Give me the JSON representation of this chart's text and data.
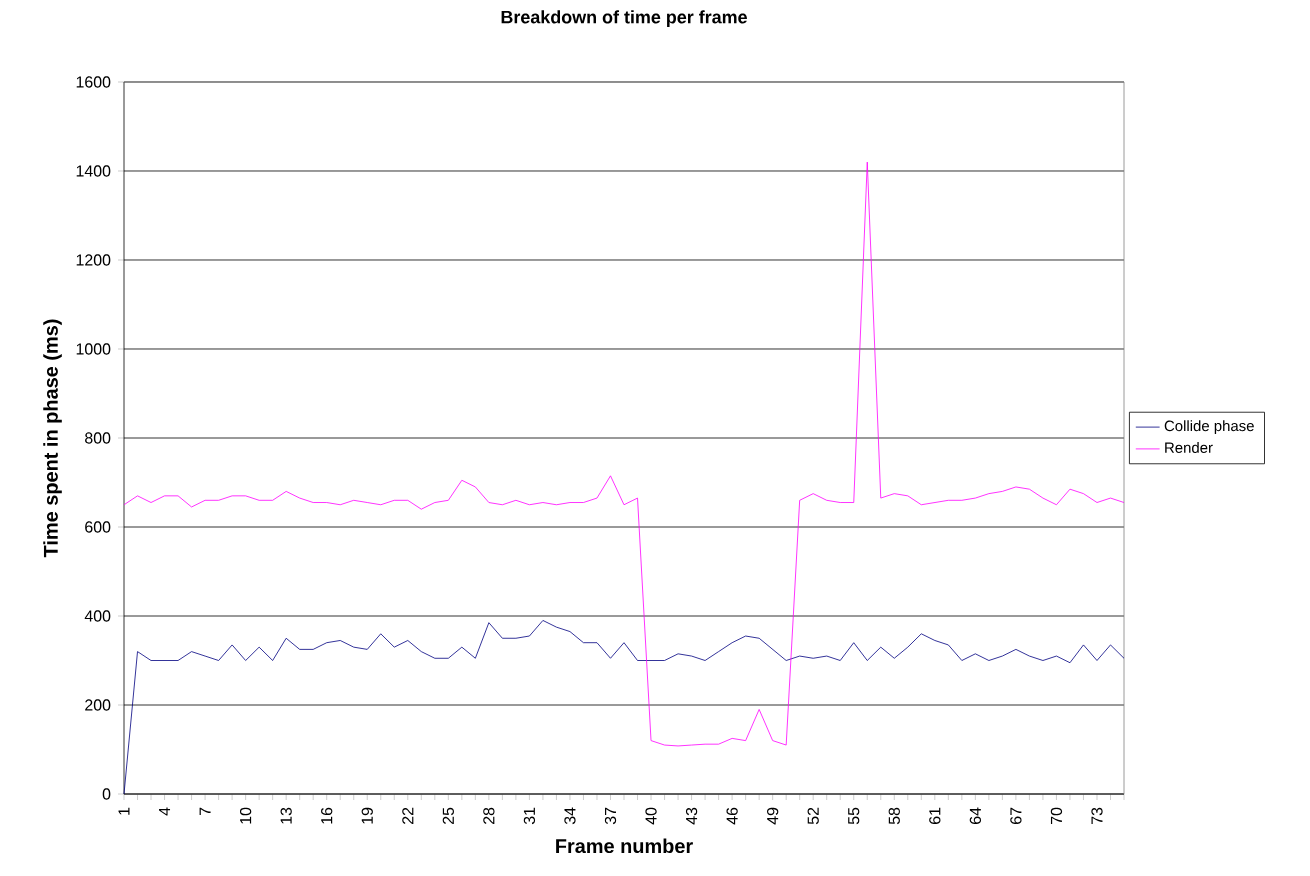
{
  "chart_data": {
    "type": "line",
    "title": "Breakdown of time per frame",
    "xlabel": "Frame number",
    "ylabel": "Time spent in phase (ms)",
    "categories": [
      "1",
      null,
      null,
      "4",
      null,
      null,
      "7",
      null,
      null,
      "10",
      null,
      null,
      "13",
      null,
      null,
      "16",
      null,
      null,
      "19",
      null,
      null,
      "22",
      null,
      null,
      "25",
      null,
      null,
      "28",
      null,
      null,
      "31",
      null,
      null,
      "34",
      null,
      null,
      "37",
      null,
      null,
      "40",
      null,
      null,
      "43",
      null,
      null,
      "46",
      null,
      null,
      "49",
      null,
      null,
      "52",
      null,
      null,
      "55",
      null,
      null,
      "58",
      null,
      null,
      "61",
      null,
      null,
      "64",
      null,
      null,
      "67",
      null,
      null,
      "70",
      null,
      null,
      "73",
      null,
      null
    ],
    "series": [
      {
        "name": "Collide phase",
        "color": "#000080",
        "values": [
          0,
          320,
          300,
          300,
          300,
          320,
          310,
          300,
          335,
          300,
          330,
          300,
          350,
          325,
          325,
          340,
          345,
          330,
          325,
          360,
          330,
          345,
          320,
          305,
          305,
          330,
          305,
          385,
          350,
          350,
          355,
          390,
          375,
          365,
          340,
          340,
          305,
          340,
          300,
          300,
          300,
          315,
          310,
          300,
          320,
          340,
          355,
          350,
          325,
          300,
          310,
          305,
          310,
          300,
          340,
          300,
          330,
          305,
          330,
          360,
          345,
          335,
          300,
          315,
          300,
          310,
          325,
          310,
          300,
          310,
          295,
          335,
          300,
          335,
          305
        ]
      },
      {
        "name": "Render",
        "color": "#ff00ff",
        "values": [
          650,
          670,
          655,
          670,
          670,
          645,
          660,
          660,
          670,
          670,
          660,
          660,
          680,
          665,
          655,
          655,
          650,
          660,
          655,
          650,
          660,
          660,
          640,
          655,
          660,
          705,
          690,
          655,
          650,
          660,
          650,
          655,
          650,
          655,
          655,
          665,
          715,
          650,
          665,
          120,
          110,
          108,
          110,
          112,
          112,
          125,
          120,
          190,
          120,
          110,
          660,
          675,
          660,
          655,
          655,
          1420,
          665,
          675,
          670,
          650,
          655,
          660,
          660,
          665,
          675,
          680,
          690,
          685,
          665,
          650,
          685,
          675,
          655,
          665,
          655
        ]
      }
    ],
    "ylim": [
      0,
      1600
    ],
    "yticks": [
      0,
      200,
      400,
      600,
      800,
      1000,
      1200,
      1400,
      1600
    ],
    "grid": "y",
    "legend": "right",
    "marker": "none",
    "line_style": "solid"
  }
}
